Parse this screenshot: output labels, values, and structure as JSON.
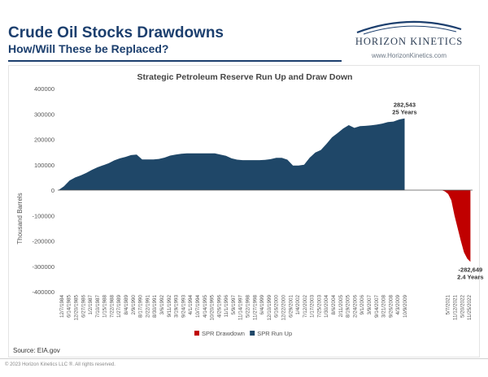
{
  "header": {
    "title": "Crude Oil Stocks Drawdowns",
    "subtitle": "How/Will These be Replaced?"
  },
  "logo": {
    "name": "HORIZON KINETICS",
    "url": "www.HorizonKinetics.com"
  },
  "source": "Source: EIA.gov",
  "footer": "© 2023 Horizon Kinetics LLC ®.  All rights reserved.",
  "colors": {
    "runup": "#1f4768",
    "drawdown": "#c00000",
    "brand": "#1c3f6e"
  },
  "chart_data": {
    "type": "area",
    "title": "Strategic Petroleum Reserve Run Up and Draw Down",
    "ylabel": "Thousand Barrels",
    "xlabel": "",
    "ylim": [
      -400000,
      400000
    ],
    "yticks": [
      -400000,
      -300000,
      -200000,
      -100000,
      0,
      100000,
      200000,
      300000,
      400000
    ],
    "ytick_labels": [
      "-400000",
      "-300000",
      "-200000",
      "-100000",
      "0",
      "100000",
      "200000",
      "300000",
      "400000"
    ],
    "grid": false,
    "legend_position": "bottom",
    "x_labels": [
      "12/7/1984",
      "6/14/1985",
      "12/20/1985",
      "6/27/1986",
      "1/2/1987",
      "7/10/1987",
      "1/15/1988",
      "7/22/1988",
      "1/27/1989",
      "8/4/1989",
      "2/9/1990",
      "8/17/1990",
      "2/22/1991",
      "8/30/1991",
      "3/6/1992",
      "9/11/1992",
      "3/19/1993",
      "9/24/1993",
      "4/1/1994",
      "10/7/1994",
      "4/14/1995",
      "10/20/1995",
      "4/26/1996",
      "11/1/1996",
      "5/9/1997",
      "11/14/1997",
      "5/22/1998",
      "11/27/1998",
      "6/4/1999",
      "12/10/1999",
      "6/16/2000",
      "12/22/2000",
      "6/29/2001",
      "1/4/2002",
      "7/12/2002",
      "1/17/2003",
      "7/25/2003",
      "1/30/2004",
      "8/6/2004",
      "2/11/2005",
      "8/19/2005",
      "2/24/2006",
      "9/1/2006",
      "3/9/2007",
      "9/14/2007",
      "3/21/2008",
      "9/26/2008",
      "4/3/2009",
      "10/9/2009",
      "",
      "",
      "",
      "",
      "",
      "5/7/2021",
      "11/12/2021",
      "5/20/2022",
      "11/25/2022"
    ],
    "series": [
      {
        "name": "SPR Run Up",
        "color": "#1f4768",
        "values": [
          0,
          15000,
          38000,
          50000,
          58000,
          68000,
          80000,
          90000,
          98000,
          106000,
          117000,
          125000,
          131000,
          138000,
          140000,
          121000,
          121000,
          121000,
          123000,
          128000,
          136000,
          140000,
          143000,
          145000,
          145000,
          145000,
          145000,
          145000,
          145000,
          140000,
          135000,
          125000,
          120000,
          118000,
          118000,
          118000,
          118000,
          119000,
          122000,
          127000,
          127000,
          120000,
          97000,
          97000,
          100000,
          128000,
          148000,
          158000,
          182000,
          208000,
          225000,
          243000,
          256000,
          245000,
          252000,
          253000,
          255000,
          258000,
          262000,
          268000,
          270000,
          278000,
          282543
        ]
      },
      {
        "name": "SPR Drawdown",
        "color": "#c00000",
        "values": [
          0,
          -5000,
          -15000,
          -40000,
          -100000,
          -150000,
          -200000,
          -245000,
          -270000,
          -282649
        ]
      }
    ],
    "annotations": [
      {
        "series": "SPR Run Up",
        "value": "282,543",
        "label": "25 Years"
      },
      {
        "series": "SPR Drawdown",
        "value": "-282,649",
        "label": "2.4 Years"
      }
    ],
    "legend": [
      {
        "name": "SPR Drawdown",
        "color": "#c00000"
      },
      {
        "name": "SPR Run Up",
        "color": "#1f4768"
      }
    ]
  }
}
